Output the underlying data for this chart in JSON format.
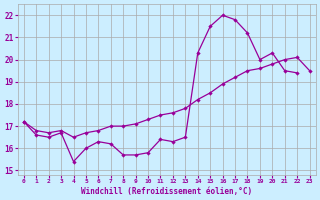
{
  "xlabel": "Windchill (Refroidissement éolien,°C)",
  "bg_color": "#cceeff",
  "line_color": "#990099",
  "grid_color": "#aaaaaa",
  "xlim": [
    -0.5,
    23.5
  ],
  "ylim": [
    14.8,
    22.5
  ],
  "yticks": [
    15,
    16,
    17,
    18,
    19,
    20,
    21,
    22
  ],
  "xticks": [
    0,
    1,
    2,
    3,
    4,
    5,
    6,
    7,
    8,
    9,
    10,
    11,
    12,
    13,
    14,
    15,
    16,
    17,
    18,
    19,
    20,
    21,
    22,
    23
  ],
  "line1_x": [
    0,
    1,
    2,
    3,
    4,
    5,
    6,
    7,
    8,
    9,
    10,
    11,
    12,
    13,
    14,
    15,
    16,
    17,
    18,
    19,
    20,
    21,
    22
  ],
  "line1_y": [
    17.2,
    16.6,
    16.5,
    16.7,
    15.4,
    16.0,
    16.3,
    16.2,
    15.7,
    15.7,
    15.8,
    16.4,
    16.3,
    16.5,
    20.3,
    21.5,
    22.0,
    21.8,
    21.2,
    20.0,
    20.3,
    19.5,
    19.4
  ],
  "line2_x": [
    0,
    1,
    2,
    3,
    4,
    5,
    6,
    7,
    8,
    9,
    10,
    11,
    12,
    13,
    14,
    15,
    16,
    17,
    18,
    19,
    20,
    21,
    22,
    23
  ],
  "line2_y": [
    17.2,
    16.8,
    16.7,
    16.8,
    16.5,
    16.7,
    16.8,
    17.0,
    17.0,
    17.1,
    17.3,
    17.5,
    17.6,
    17.8,
    18.2,
    18.5,
    18.9,
    19.2,
    19.5,
    19.6,
    19.8,
    20.0,
    20.1,
    19.5
  ]
}
